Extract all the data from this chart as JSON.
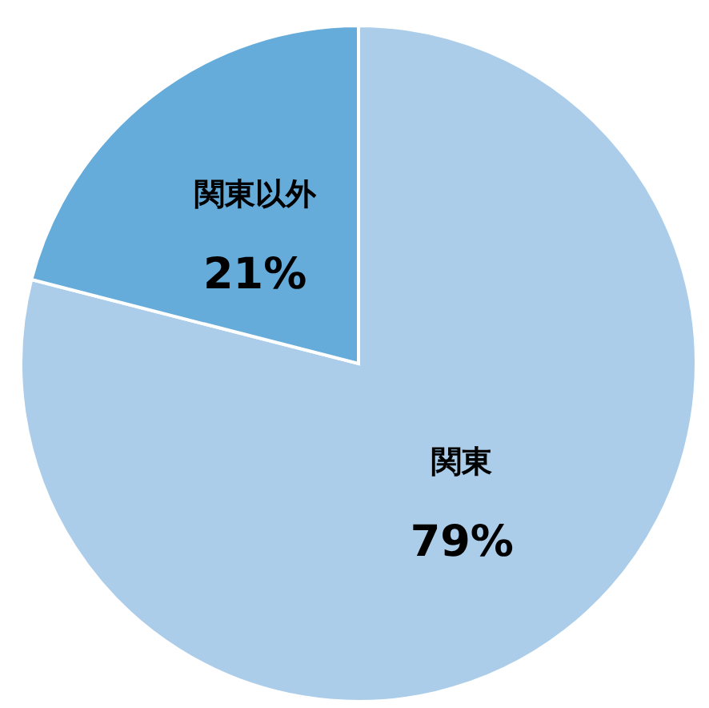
{
  "chart_data": {
    "type": "pie",
    "categories": [
      "関東",
      "関東以外"
    ],
    "values": [
      79,
      21
    ],
    "colors": [
      "#abcde9",
      "#65acdb"
    ],
    "value_labels": [
      "79%",
      "21%"
    ]
  }
}
